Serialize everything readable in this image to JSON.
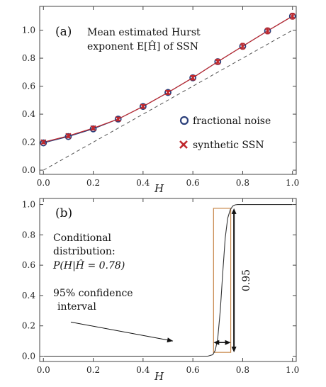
{
  "chart_data": [
    {
      "type": "line",
      "panel_label": "(a)",
      "title_lines": [
        "Mean estimated Hurst",
        "exponent E[Ĥ] of SSN"
      ],
      "xlabel": "H",
      "ylabel": "",
      "xlim": [
        0.0,
        1.0
      ],
      "ylim": [
        0.0,
        1.1
      ],
      "xticks": [
        "0.0",
        "0.2",
        "0.4",
        "0.6",
        "0.8",
        "1.0"
      ],
      "yticks": [
        "0.0",
        "0.2",
        "0.4",
        "0.6",
        "0.8",
        "1.0"
      ],
      "x": [
        0.0,
        0.1,
        0.2,
        0.3,
        0.4,
        0.5,
        0.6,
        0.7,
        0.8,
        0.9,
        1.0
      ],
      "series": [
        {
          "name": "fractional noise",
          "marker": "open-circle",
          "color": "#2b3f7a",
          "values": [
            0.195,
            0.24,
            0.295,
            0.365,
            0.455,
            0.555,
            0.66,
            0.775,
            0.885,
            0.995,
            1.1
          ]
        },
        {
          "name": "synthetic SSN",
          "marker": "x",
          "color": "#c0282d",
          "values": [
            0.2,
            0.245,
            0.3,
            0.365,
            0.455,
            0.555,
            0.66,
            0.775,
            0.885,
            0.995,
            1.1
          ],
          "error": [
            0.01,
            0.012,
            0.012,
            0.012,
            0.012,
            0.013,
            0.015,
            0.017,
            0.02,
            0.02,
            0.02
          ]
        }
      ],
      "reference_line": {
        "style": "dashed",
        "x": [
          0.0,
          1.0
        ],
        "y": [
          0.0,
          1.0
        ]
      },
      "legend_position": "right"
    },
    {
      "type": "line",
      "panel_label": "(b)",
      "annotation_lines": [
        "Conditional",
        "distribution:",
        "P(H|Ĥ = 0.78)"
      ],
      "ci_label_lines": [
        "95% confidence",
        "interval"
      ],
      "ci_value": "0.95",
      "xlabel": "H",
      "ylabel": "",
      "xlim": [
        0.0,
        1.0
      ],
      "ylim": [
        0.0,
        1.0
      ],
      "xticks": [
        "0.0",
        "0.2",
        "0.4",
        "0.6",
        "0.8",
        "1.0"
      ],
      "yticks": [
        "0.0",
        "0.2",
        "0.4",
        "0.6",
        "0.8",
        "1.0"
      ],
      "cdf": {
        "color": "#333333",
        "x": [
          0.0,
          0.66,
          0.68,
          0.69,
          0.7,
          0.71,
          0.72,
          0.73,
          0.74,
          0.75,
          0.76,
          0.77,
          0.78,
          1.0
        ],
        "y": [
          0.0,
          0.0,
          0.01,
          0.04,
          0.12,
          0.3,
          0.55,
          0.78,
          0.91,
          0.965,
          0.99,
          0.998,
          1.0,
          1.0
        ]
      },
      "ci_box": {
        "color": "#c8874a",
        "x": [
          0.683,
          0.752
        ],
        "y": [
          0.025,
          0.975
        ]
      },
      "ci_width_arrow": {
        "x": [
          0.683,
          0.752
        ],
        "y": 0.09
      },
      "ci_height_arrow": {
        "x": 0.765,
        "y": [
          0.025,
          0.975
        ]
      },
      "pointer_arrow": {
        "from": [
          0.11,
          0.225
        ],
        "to": [
          0.52,
          0.1
        ]
      }
    }
  ]
}
